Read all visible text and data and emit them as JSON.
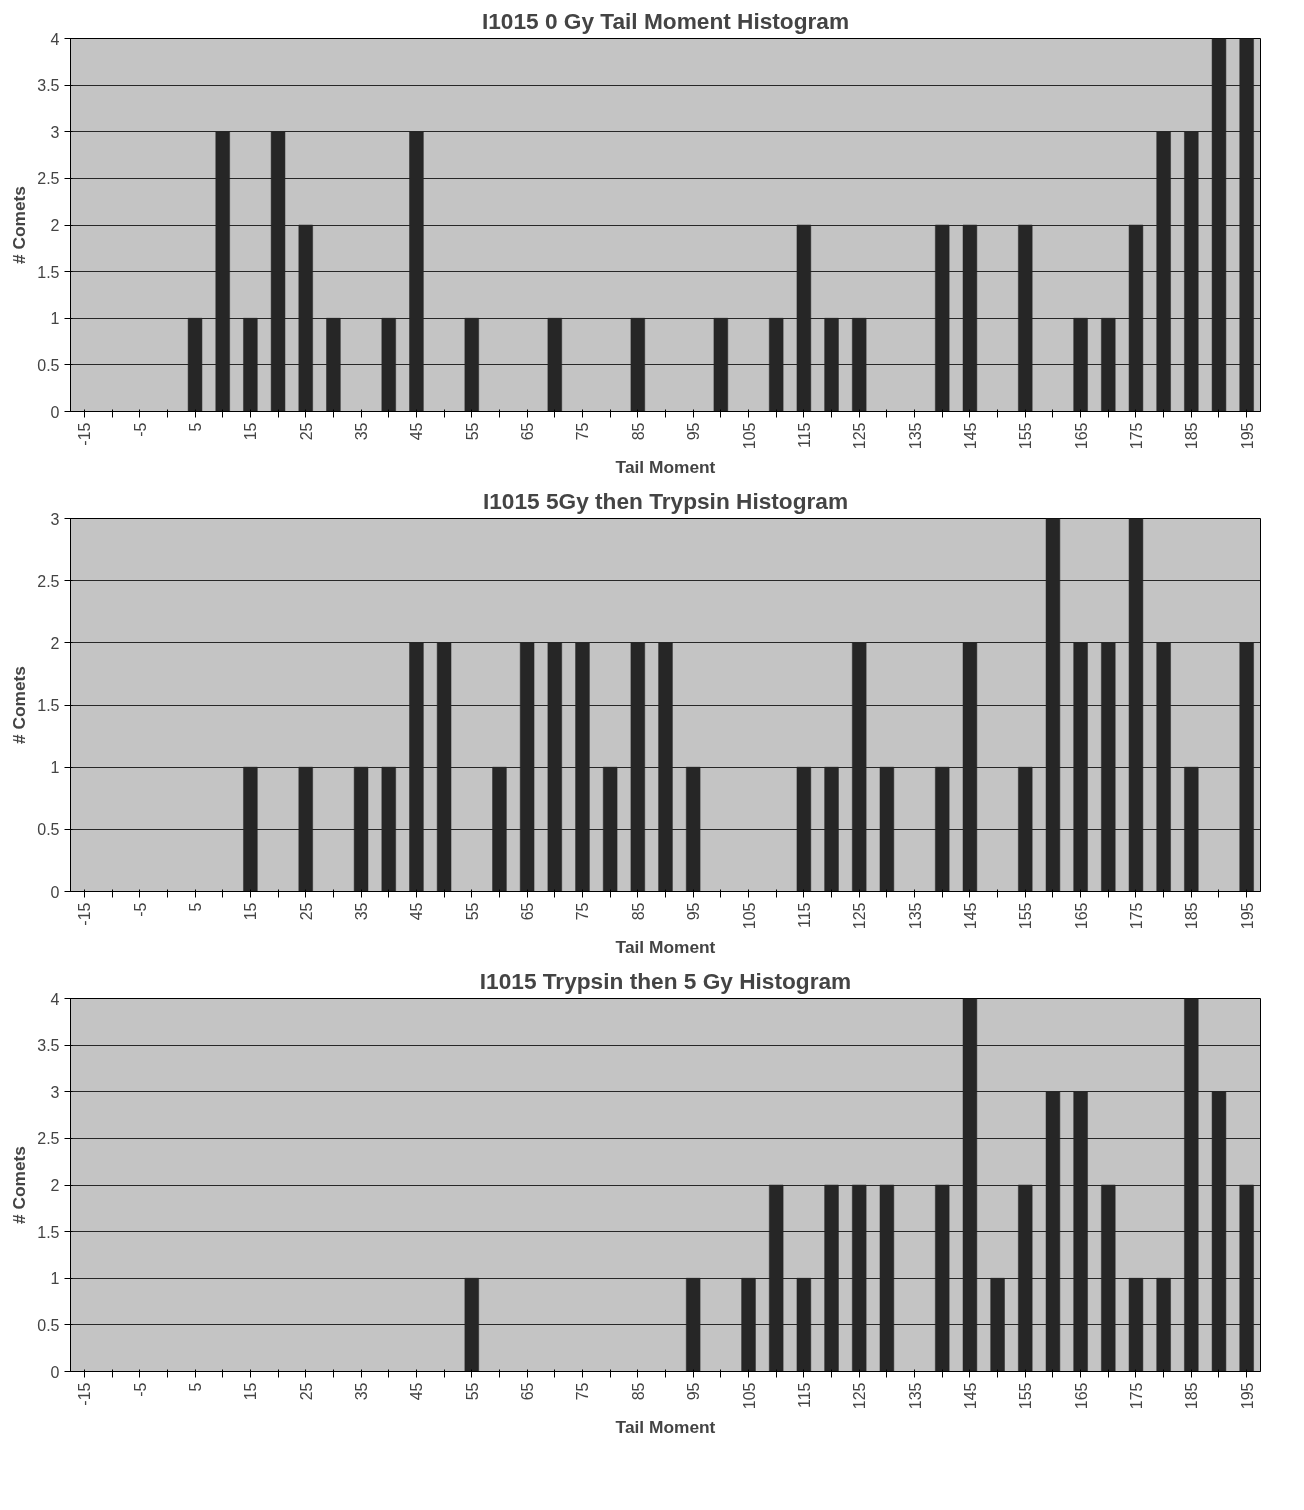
{
  "chart_data": [
    {
      "type": "bar",
      "title": "I1015 0 Gy Tail Moment Histogram",
      "xlabel": "Tail Moment",
      "ylabel": "# Comets",
      "color": "#262626",
      "categories": [
        "-15",
        null,
        "-5",
        null,
        "5",
        null,
        "15",
        null,
        "25",
        null,
        "35",
        null,
        "45",
        null,
        "55",
        null,
        "65",
        null,
        "75",
        null,
        "85",
        null,
        "95",
        null,
        "105",
        null,
        "115",
        null,
        "125",
        null,
        "135",
        null,
        "145",
        null,
        "155",
        null,
        "165",
        null,
        "175",
        null,
        "185",
        null,
        "195"
      ],
      "values": [
        0,
        0,
        0,
        0,
        1,
        3,
        1,
        3,
        2,
        1,
        0,
        1,
        3,
        0,
        1,
        0,
        0,
        1,
        0,
        0,
        1,
        0,
        0,
        1,
        0,
        1,
        2,
        1,
        1,
        0,
        0,
        2,
        2,
        0,
        2,
        0,
        1,
        1,
        2,
        3,
        3,
        4,
        4
      ],
      "ylim": [
        0,
        4
      ],
      "yticks": [
        0,
        0.5,
        1,
        1.5,
        2,
        2.5,
        3,
        3.5,
        4
      ],
      "grid": "y"
    },
    {
      "type": "bar",
      "title": "I1015 5Gy then Trypsin Histogram",
      "xlabel": "Tail Moment",
      "ylabel": "# Comets",
      "color": "#262626",
      "categories": [
        "-15",
        null,
        "-5",
        null,
        "5",
        null,
        "15",
        null,
        "25",
        null,
        "35",
        null,
        "45",
        null,
        "55",
        null,
        "65",
        null,
        "75",
        null,
        "85",
        null,
        "95",
        null,
        "105",
        null,
        "115",
        null,
        "125",
        null,
        "135",
        null,
        "145",
        null,
        "155",
        null,
        "165",
        null,
        "175",
        null,
        "185",
        null,
        "195"
      ],
      "values": [
        0,
        0,
        0,
        0,
        0,
        0,
        1,
        0,
        1,
        0,
        1,
        1,
        2,
        2,
        0,
        1,
        2,
        2,
        2,
        1,
        2,
        2,
        1,
        0,
        0,
        0,
        1,
        1,
        2,
        1,
        0,
        1,
        2,
        0,
        1,
        3,
        2,
        2,
        3,
        2,
        1,
        0,
        2
      ],
      "ylim": [
        0,
        3
      ],
      "yticks": [
        0,
        0.5,
        1,
        1.5,
        2,
        2.5,
        3
      ],
      "grid": "y"
    },
    {
      "type": "bar",
      "title": "I1015 Trypsin then 5 Gy Histogram",
      "xlabel": "Tail Moment",
      "ylabel": "# Comets",
      "color": "#262626",
      "categories": [
        "-15",
        null,
        "-5",
        null,
        "5",
        null,
        "15",
        null,
        "25",
        null,
        "35",
        null,
        "45",
        null,
        "55",
        null,
        "65",
        null,
        "75",
        null,
        "85",
        null,
        "95",
        null,
        "105",
        null,
        "115",
        null,
        "125",
        null,
        "135",
        null,
        "145",
        null,
        "155",
        null,
        "165",
        null,
        "175",
        null,
        "185",
        null,
        "195"
      ],
      "values": [
        0,
        0,
        0,
        0,
        0,
        0,
        0,
        0,
        0,
        0,
        0,
        0,
        0,
        0,
        1,
        0,
        0,
        0,
        0,
        0,
        0,
        0,
        1,
        0,
        1,
        2,
        1,
        2,
        2,
        2,
        0,
        2,
        4,
        1,
        2,
        3,
        3,
        2,
        1,
        1,
        4,
        3,
        2
      ],
      "ylim": [
        0,
        4
      ],
      "yticks": [
        0,
        0.5,
        1,
        1.5,
        2,
        2.5,
        3,
        3.5,
        4
      ],
      "grid": "y"
    }
  ]
}
